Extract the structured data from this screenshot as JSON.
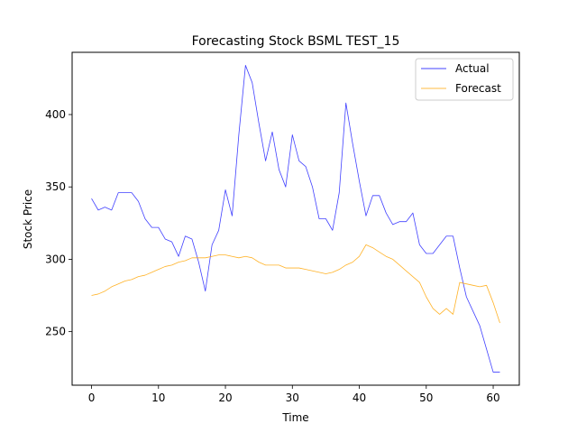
{
  "chart_data": {
    "type": "line",
    "title": "Forecasting Stock BSML TEST_15",
    "xlabel": "Time",
    "ylabel": "Stock Price",
    "xlim": [
      -2.9,
      63.9
    ],
    "ylim": [
      213,
      443
    ],
    "xticks": [
      0,
      10,
      20,
      30,
      40,
      50,
      60
    ],
    "yticks": [
      250,
      300,
      350,
      400
    ],
    "grid": false,
    "legend": "top-right",
    "series": [
      {
        "name": "Actual",
        "color": "#0000ff",
        "values": [
          342,
          334,
          336,
          334,
          346,
          346,
          346,
          340,
          328,
          322,
          322,
          314,
          312,
          302,
          316,
          314,
          298,
          278,
          310,
          320,
          348,
          330,
          386,
          434,
          422,
          394,
          368,
          388,
          362,
          350,
          386,
          368,
          364,
          350,
          328,
          328,
          320,
          346,
          408,
          380,
          354,
          330,
          344,
          344,
          332,
          324,
          326,
          326,
          332,
          310,
          304,
          304,
          310,
          316,
          316,
          294,
          274,
          264,
          254,
          238,
          222,
          222
        ]
      },
      {
        "name": "Forecast",
        "color": "#ffa500",
        "values": [
          275,
          276,
          278,
          281,
          283,
          285,
          286,
          288,
          289,
          291,
          293,
          295,
          296,
          298,
          299,
          301,
          301,
          301,
          302,
          303,
          303,
          302,
          301,
          302,
          301,
          298,
          296,
          296,
          296,
          294,
          294,
          294,
          293,
          292,
          291,
          290,
          291,
          293,
          296,
          298,
          302,
          310,
          308,
          305,
          302,
          300,
          296,
          292,
          288,
          284,
          274,
          266,
          262,
          266,
          262,
          284,
          283,
          282,
          281,
          282,
          270,
          256
        ]
      }
    ]
  }
}
